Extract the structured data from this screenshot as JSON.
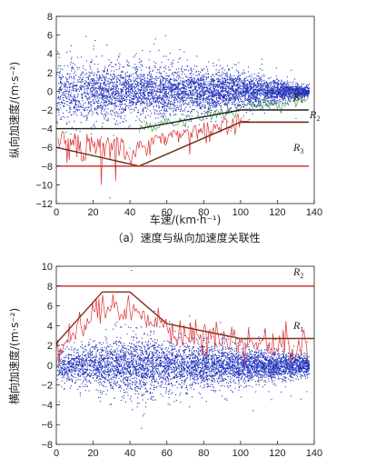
{
  "caption": "（a）速度与纵向加速度关联性",
  "chart_data": [
    {
      "type": "scatter",
      "title": "",
      "xlabel": "车速/(km·h⁻¹)",
      "ylabel": "纵向加速度/(m·s⁻²)",
      "xlim": [
        0,
        140
      ],
      "ylim": [
        -12,
        8
      ],
      "xticks": [
        "0",
        "20",
        "40",
        "60",
        "80",
        "100",
        "120",
        "140"
      ],
      "yticks": [
        "8",
        "6",
        "4",
        "2",
        "0",
        "−2",
        "−4",
        "−6",
        "−8",
        "−10",
        "−12"
      ],
      "grid": false,
      "scatter_color": "#2233bb",
      "series": [
        {
          "name": "R1",
          "label": "R",
          "sub": "1",
          "color": "#222222",
          "x": [
            0,
            45,
            100,
            137
          ],
          "y": [
            -4,
            -4,
            -2,
            -2
          ]
        },
        {
          "name": "R2",
          "label": "R",
          "sub": "2",
          "color": "#8b2e1a",
          "x": [
            100,
            137
          ],
          "y": [
            -3.3,
            -3.3
          ]
        },
        {
          "name": "boundary",
          "color": "#6b2a10",
          "x": [
            0,
            45,
            100,
            137
          ],
          "y": [
            -6,
            -8,
            -3.3,
            -3.3
          ]
        },
        {
          "name": "R3",
          "label": "R",
          "sub": "3",
          "color": "#cc2222",
          "x": [
            0,
            137
          ],
          "y": [
            -8,
            -8
          ]
        }
      ],
      "trace_color": "#dd3333",
      "green_color": "#44aa44"
    },
    {
      "type": "scatter",
      "title": "",
      "xlabel": "",
      "ylabel": "横向加速度/(m·s⁻²)",
      "xlim": [
        0,
        140
      ],
      "ylim": [
        -8,
        10
      ],
      "xticks": [
        "0",
        "20",
        "40",
        "60",
        "80",
        "100",
        "120",
        "140"
      ],
      "yticks": [
        "10",
        "8",
        "6",
        "4",
        "2",
        "0",
        "−2",
        "−4",
        "−6",
        "−8"
      ],
      "grid": false,
      "scatter_color": "#2233bb",
      "series": [
        {
          "name": "R2",
          "label": "R",
          "sub": "2",
          "color": "#cc2222",
          "x": [
            0,
            140
          ],
          "y": [
            8,
            8
          ]
        },
        {
          "name": "R1",
          "label": "R",
          "sub": "1",
          "color": "#8b2e1a",
          "x": [
            0,
            25,
            40,
            60,
            100,
            140
          ],
          "y": [
            2.2,
            7.4,
            7.4,
            4.2,
            2.7,
            2.7
          ]
        }
      ],
      "trace_color": "#dd3333"
    }
  ]
}
